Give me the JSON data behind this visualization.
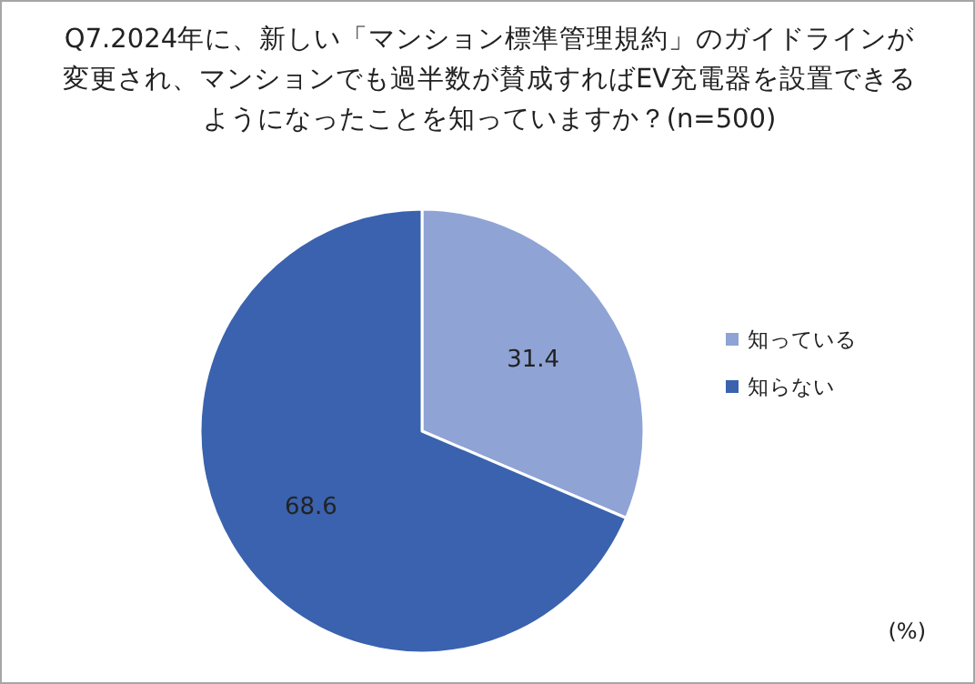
{
  "chart_data": {
    "type": "pie",
    "title": "Q7.2024年に、新しい「マンション標準管理規約」のガイドラインが変更され、マンションでも過半数が賛成すればEV充電器を設置できるようになったことを知っていますか？(n=500)",
    "categories": [
      "知っている",
      "知らない"
    ],
    "values": [
      31.4,
      68.6
    ],
    "colors": [
      "#8fa3d5",
      "#3a62ae"
    ],
    "data_labels": true,
    "legend": "right",
    "annotations": [
      "(%)"
    ]
  }
}
